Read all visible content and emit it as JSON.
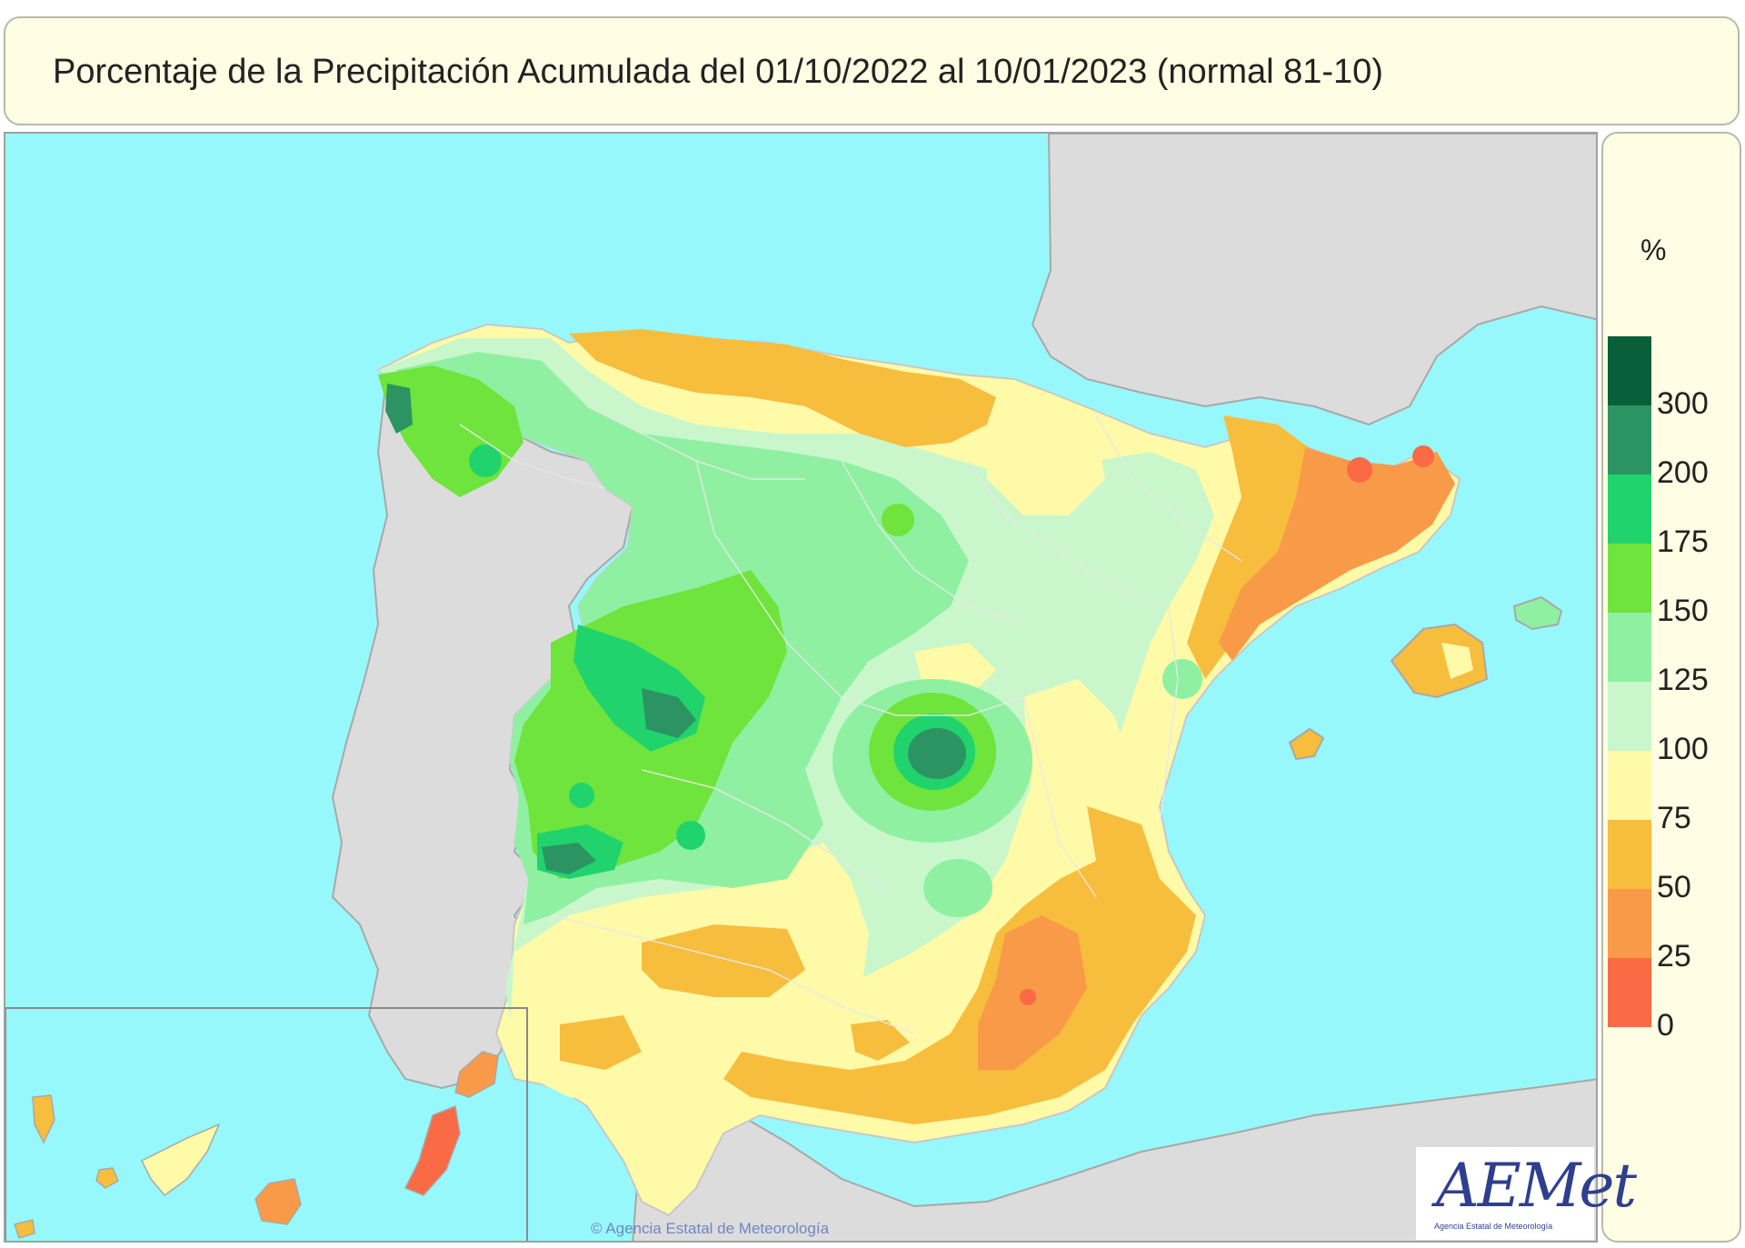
{
  "title": "Porcentaje de la Precipitación Acumulada del 01/10/2022 al 10/01/2023 (normal 81-10)",
  "legend": {
    "unit": "%",
    "items": [
      {
        "label": "300",
        "color": "#0a5f3b"
      },
      {
        "label": "200",
        "color": "#2c9463"
      },
      {
        "label": "175",
        "color": "#21d36d"
      },
      {
        "label": "150",
        "color": "#6fe43c"
      },
      {
        "label": "125",
        "color": "#8ff0a2"
      },
      {
        "label": "100",
        "color": "#c9f7cb"
      },
      {
        "label": "75",
        "color": "#fffaa8"
      },
      {
        "label": "50",
        "color": "#f7bd3d"
      },
      {
        "label": "25",
        "color": "#f99a48"
      },
      {
        "label": "0",
        "color": "#f96a45"
      }
    ]
  },
  "colors": {
    "sea": "#97f8fb",
    "land_outside": "#dcdcdc"
  },
  "logo": {
    "name": "AEMet",
    "subtitle": "Agencia Estatal de Meteorología"
  },
  "credit": "© Agencia Estatal de Meteorología"
}
